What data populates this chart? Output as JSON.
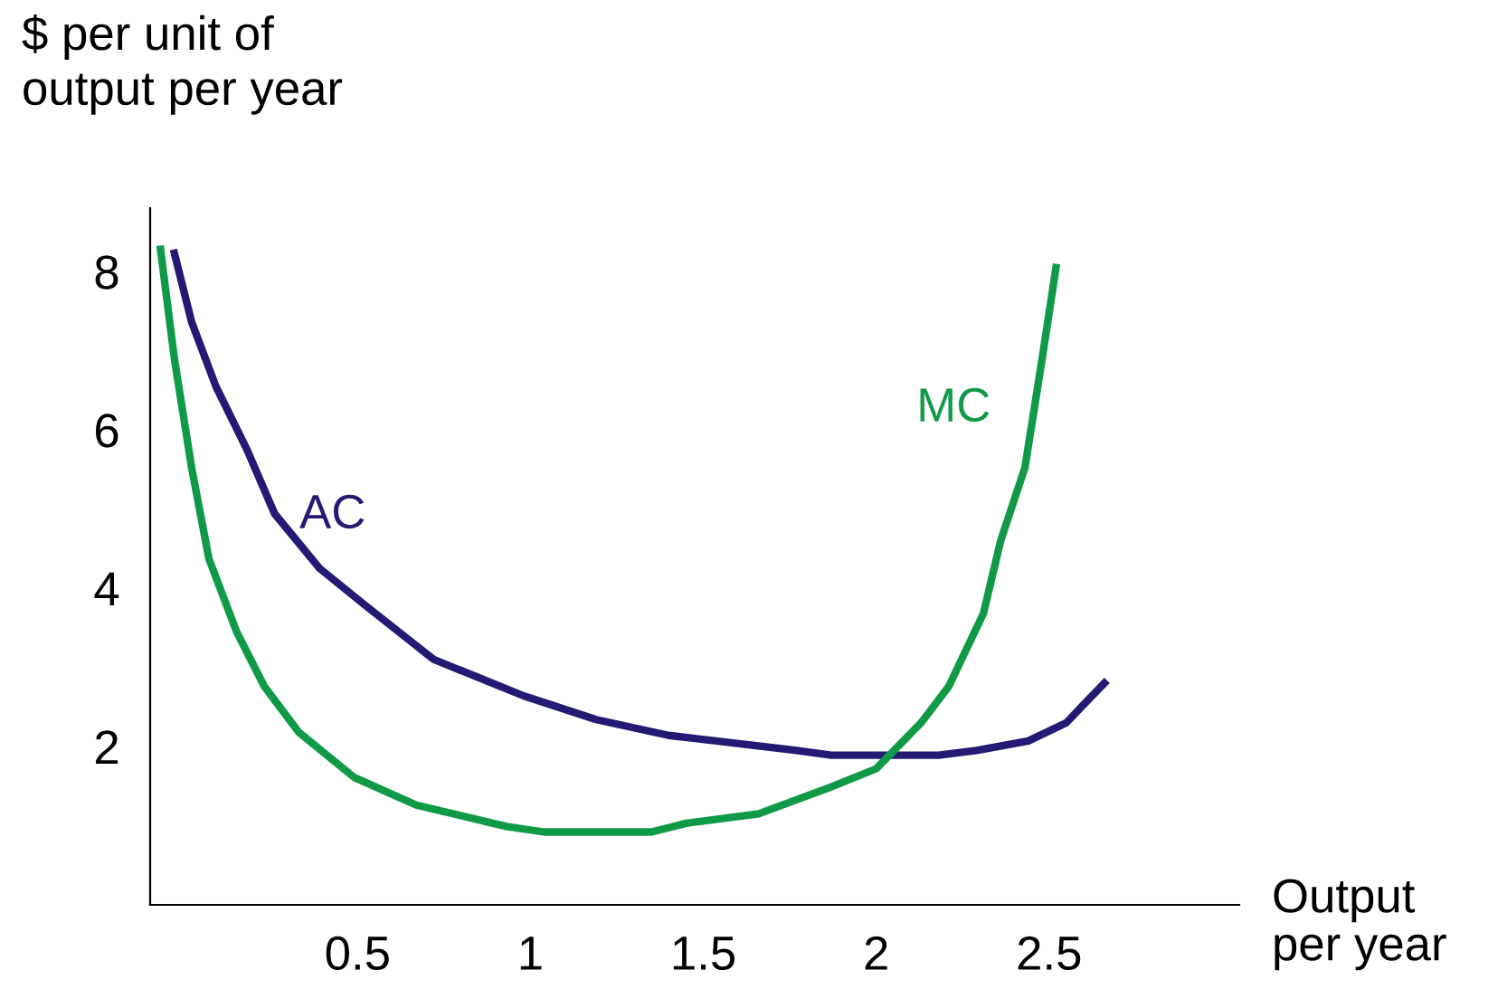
{
  "chart_data": {
    "type": "line",
    "ylabel": "$ per unit of\noutput per year",
    "xlabel": "Output\nper year",
    "xlim": [
      -0.1,
      3.05
    ],
    "ylim": [
      0,
      8.8
    ],
    "xticks": [
      0.5,
      1,
      1.5,
      2,
      2.5
    ],
    "yticks": [
      2,
      4,
      6,
      8
    ],
    "grid": false,
    "legend": false,
    "marker": "none",
    "line_style": "solid",
    "series": [
      {
        "name": "AC",
        "color": "#241a74",
        "x": [
          -0.03,
          0.02,
          0.09,
          0.18,
          0.26,
          0.39,
          0.52,
          0.72,
          0.98,
          1.19,
          1.4,
          1.77,
          1.87,
          2.18,
          2.29,
          2.44,
          2.55,
          2.6,
          2.66
        ],
        "values": [
          8.23,
          7.36,
          6.55,
          5.75,
          4.94,
          4.25,
          3.79,
          3.1,
          2.64,
          2.34,
          2.14,
          1.95,
          1.89,
          1.89,
          1.95,
          2.07,
          2.3,
          2.53,
          2.8
        ]
      },
      {
        "name": "MC",
        "color": "#0f9a48",
        "x": [
          -0.07,
          -0.03,
          0.02,
          0.07,
          0.15,
          0.23,
          0.33,
          0.49,
          0.67,
          0.93,
          1.04,
          1.35,
          1.45,
          1.66,
          1.87,
          2.0,
          2.13,
          2.21,
          2.31,
          2.36,
          2.43,
          2.48,
          2.52
        ],
        "values": [
          8.28,
          6.9,
          5.52,
          4.37,
          3.45,
          2.76,
          2.18,
          1.61,
          1.26,
          0.99,
          0.92,
          0.92,
          1.03,
          1.15,
          1.49,
          1.72,
          2.3,
          2.76,
          3.68,
          4.6,
          5.52,
          6.9,
          8.05
        ]
      }
    ]
  }
}
